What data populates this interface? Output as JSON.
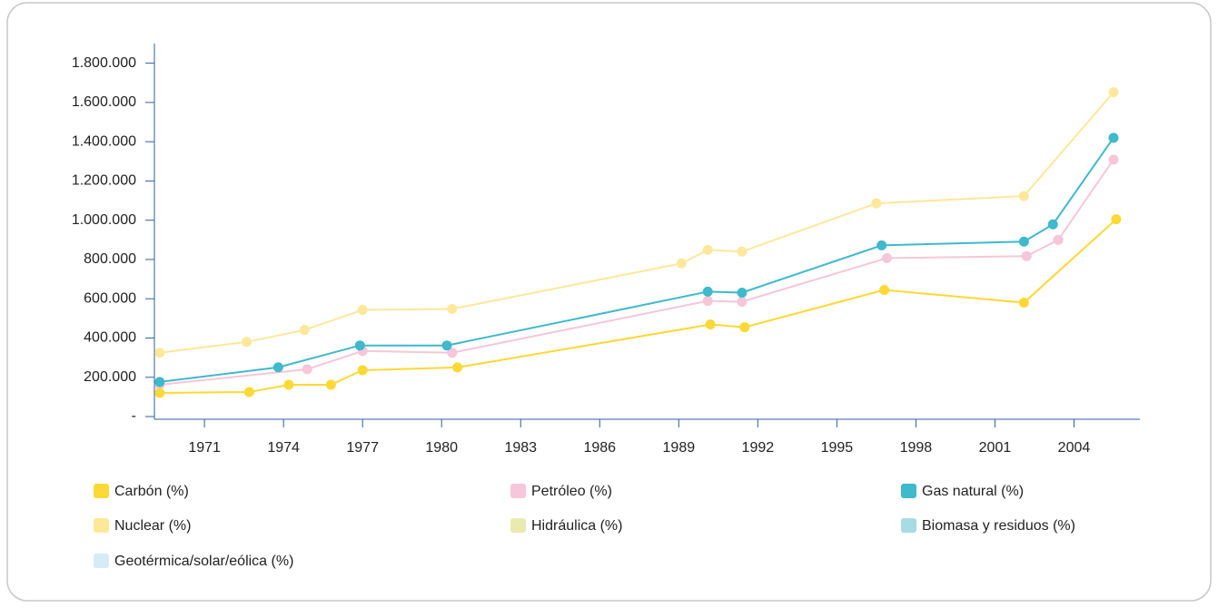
{
  "chart_data": {
    "type": "line",
    "xlim": [
      1969.1,
      2006.5
    ],
    "xticks": [
      1971,
      1974,
      1977,
      1980,
      1983,
      1986,
      1989,
      1992,
      1995,
      1998,
      2001,
      2004
    ],
    "ylim": [
      0,
      1900000
    ],
    "yticks": [
      {
        "value": 0,
        "label": "-"
      },
      {
        "value": 200000,
        "label": "200.000"
      },
      {
        "value": 400000,
        "label": "400.000"
      },
      {
        "value": 600000,
        "label": "600.000"
      },
      {
        "value": 800000,
        "label": "800.000"
      },
      {
        "value": 1000000,
        "label": "1.000.000"
      },
      {
        "value": 1200000,
        "label": "1.200.000"
      },
      {
        "value": 1400000,
        "label": "1.400.000"
      },
      {
        "value": 1600000,
        "label": "1.600.000"
      },
      {
        "value": 1800000,
        "label": "1.800.000"
      }
    ],
    "series": [
      {
        "name": "Carbón (%)",
        "color": "#fcd934",
        "x": [
          1969.3,
          1972.7,
          1974.2,
          1975.8,
          1977.0,
          1980.6,
          1990.2,
          1991.5,
          1996.8,
          2002.1,
          2005.6
        ],
        "values": [
          120000,
          125000,
          162000,
          162000,
          236000,
          250000,
          469000,
          455000,
          645000,
          580000,
          1005000
        ]
      },
      {
        "name": "Petróleo (%)",
        "color": "#f7c6d8",
        "x": [
          1969.3,
          1974.9,
          1977.0,
          1980.4,
          1990.1,
          1991.4,
          1996.9,
          2002.2,
          2003.4,
          2005.5
        ],
        "values": [
          162000,
          241000,
          334000,
          325000,
          589000,
          585000,
          807000,
          817000,
          900000,
          1309000
        ]
      },
      {
        "name": "Gas natural (%)",
        "color": "#3fb9cc",
        "x": [
          1969.3,
          1973.8,
          1976.9,
          1980.2,
          1990.1,
          1991.4,
          1996.7,
          2002.1,
          2003.2,
          2005.5
        ],
        "values": [
          176000,
          251000,
          362000,
          362000,
          636000,
          631000,
          872000,
          891000,
          979000,
          1420000
        ]
      },
      {
        "name": "Nuclear (%)",
        "color": "#fde89a",
        "x": [
          1969.3,
          1972.6,
          1974.8,
          1977.0,
          1980.4,
          1989.1,
          1990.1,
          1991.4,
          1996.5,
          2002.1,
          2005.5
        ],
        "values": [
          325000,
          380000,
          441000,
          543000,
          548000,
          780000,
          849000,
          840000,
          1086000,
          1123000,
          1652000
        ]
      },
      {
        "name": "Hidráulica (%)",
        "color": "#e8eab0",
        "x": [],
        "values": []
      },
      {
        "name": "Biomasa y residuos  (%)",
        "color": "#a8dbe6",
        "x": [],
        "values": []
      },
      {
        "name": "Geotérmica/solar/eólica (%)",
        "color": "#d5ecf7",
        "x": [],
        "values": []
      }
    ]
  }
}
